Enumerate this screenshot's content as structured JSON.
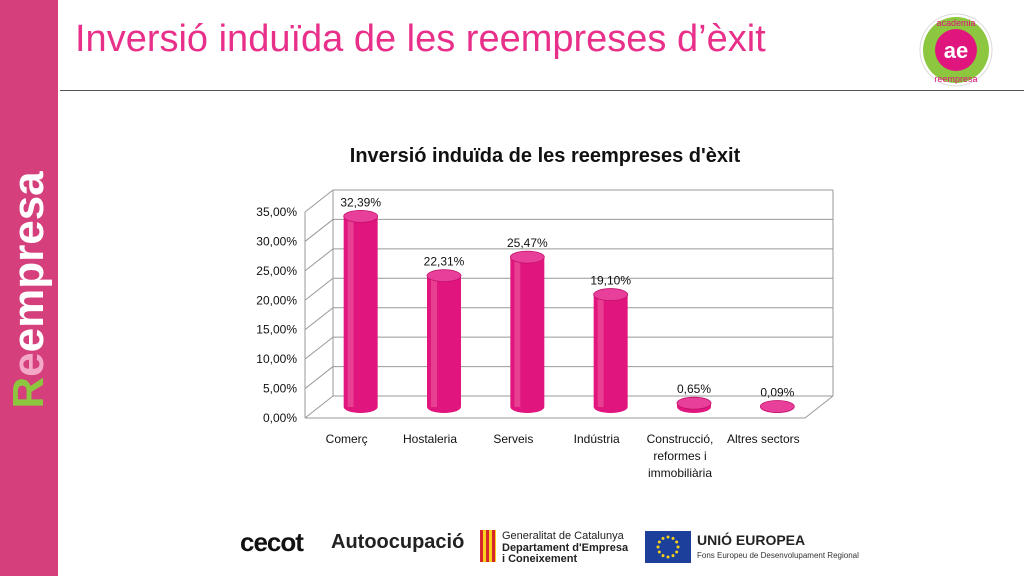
{
  "slide": {
    "title": "Inversió induïda de les reempreses d’èxit",
    "sidebar_brand": "Reempresa",
    "logo_academia": {
      "top_text": "academia",
      "bottom_text": "reempresa",
      "initials": "ae"
    }
  },
  "footer": {
    "cecot": "cecot",
    "autoocupacio": "Autoocupació",
    "gencat": {
      "line1": "Generalitat de Catalunya",
      "line2": "Departament d'Empresa",
      "line3": "i Coneixement"
    },
    "eu": {
      "line1": "UNIÓ EUROPEA",
      "line2": "Fons Europeu de Desenvolupament Regional"
    }
  },
  "colors": {
    "brand_pink": "#d43f7c",
    "title_pink": "#e8308a",
    "bar": "#e0157d",
    "brand_green": "#8dc63f"
  },
  "chart_data": {
    "type": "bar",
    "title": "Inversió induïda de les reempreses d'èxit",
    "categories": [
      [
        "Comerç"
      ],
      [
        "Hostaleria"
      ],
      [
        "Serveis"
      ],
      [
        "Indústria"
      ],
      [
        "Construcció,",
        "reformes i",
        "immobiliària"
      ],
      [
        "Altres sectors"
      ]
    ],
    "values": [
      32.39,
      22.31,
      25.47,
      19.1,
      0.65,
      0.09
    ],
    "data_labels": [
      "32,39%",
      "22,31%",
      "25,47%",
      "19,10%",
      "0,65%",
      "0,09%"
    ],
    "y_ticks": [
      "0,00%",
      "5,00%",
      "10,00%",
      "15,00%",
      "20,00%",
      "25,00%",
      "30,00%",
      "35,00%"
    ],
    "ylim": [
      0,
      35
    ],
    "grid": true,
    "legend": "none",
    "style": "3d-cylinder"
  }
}
